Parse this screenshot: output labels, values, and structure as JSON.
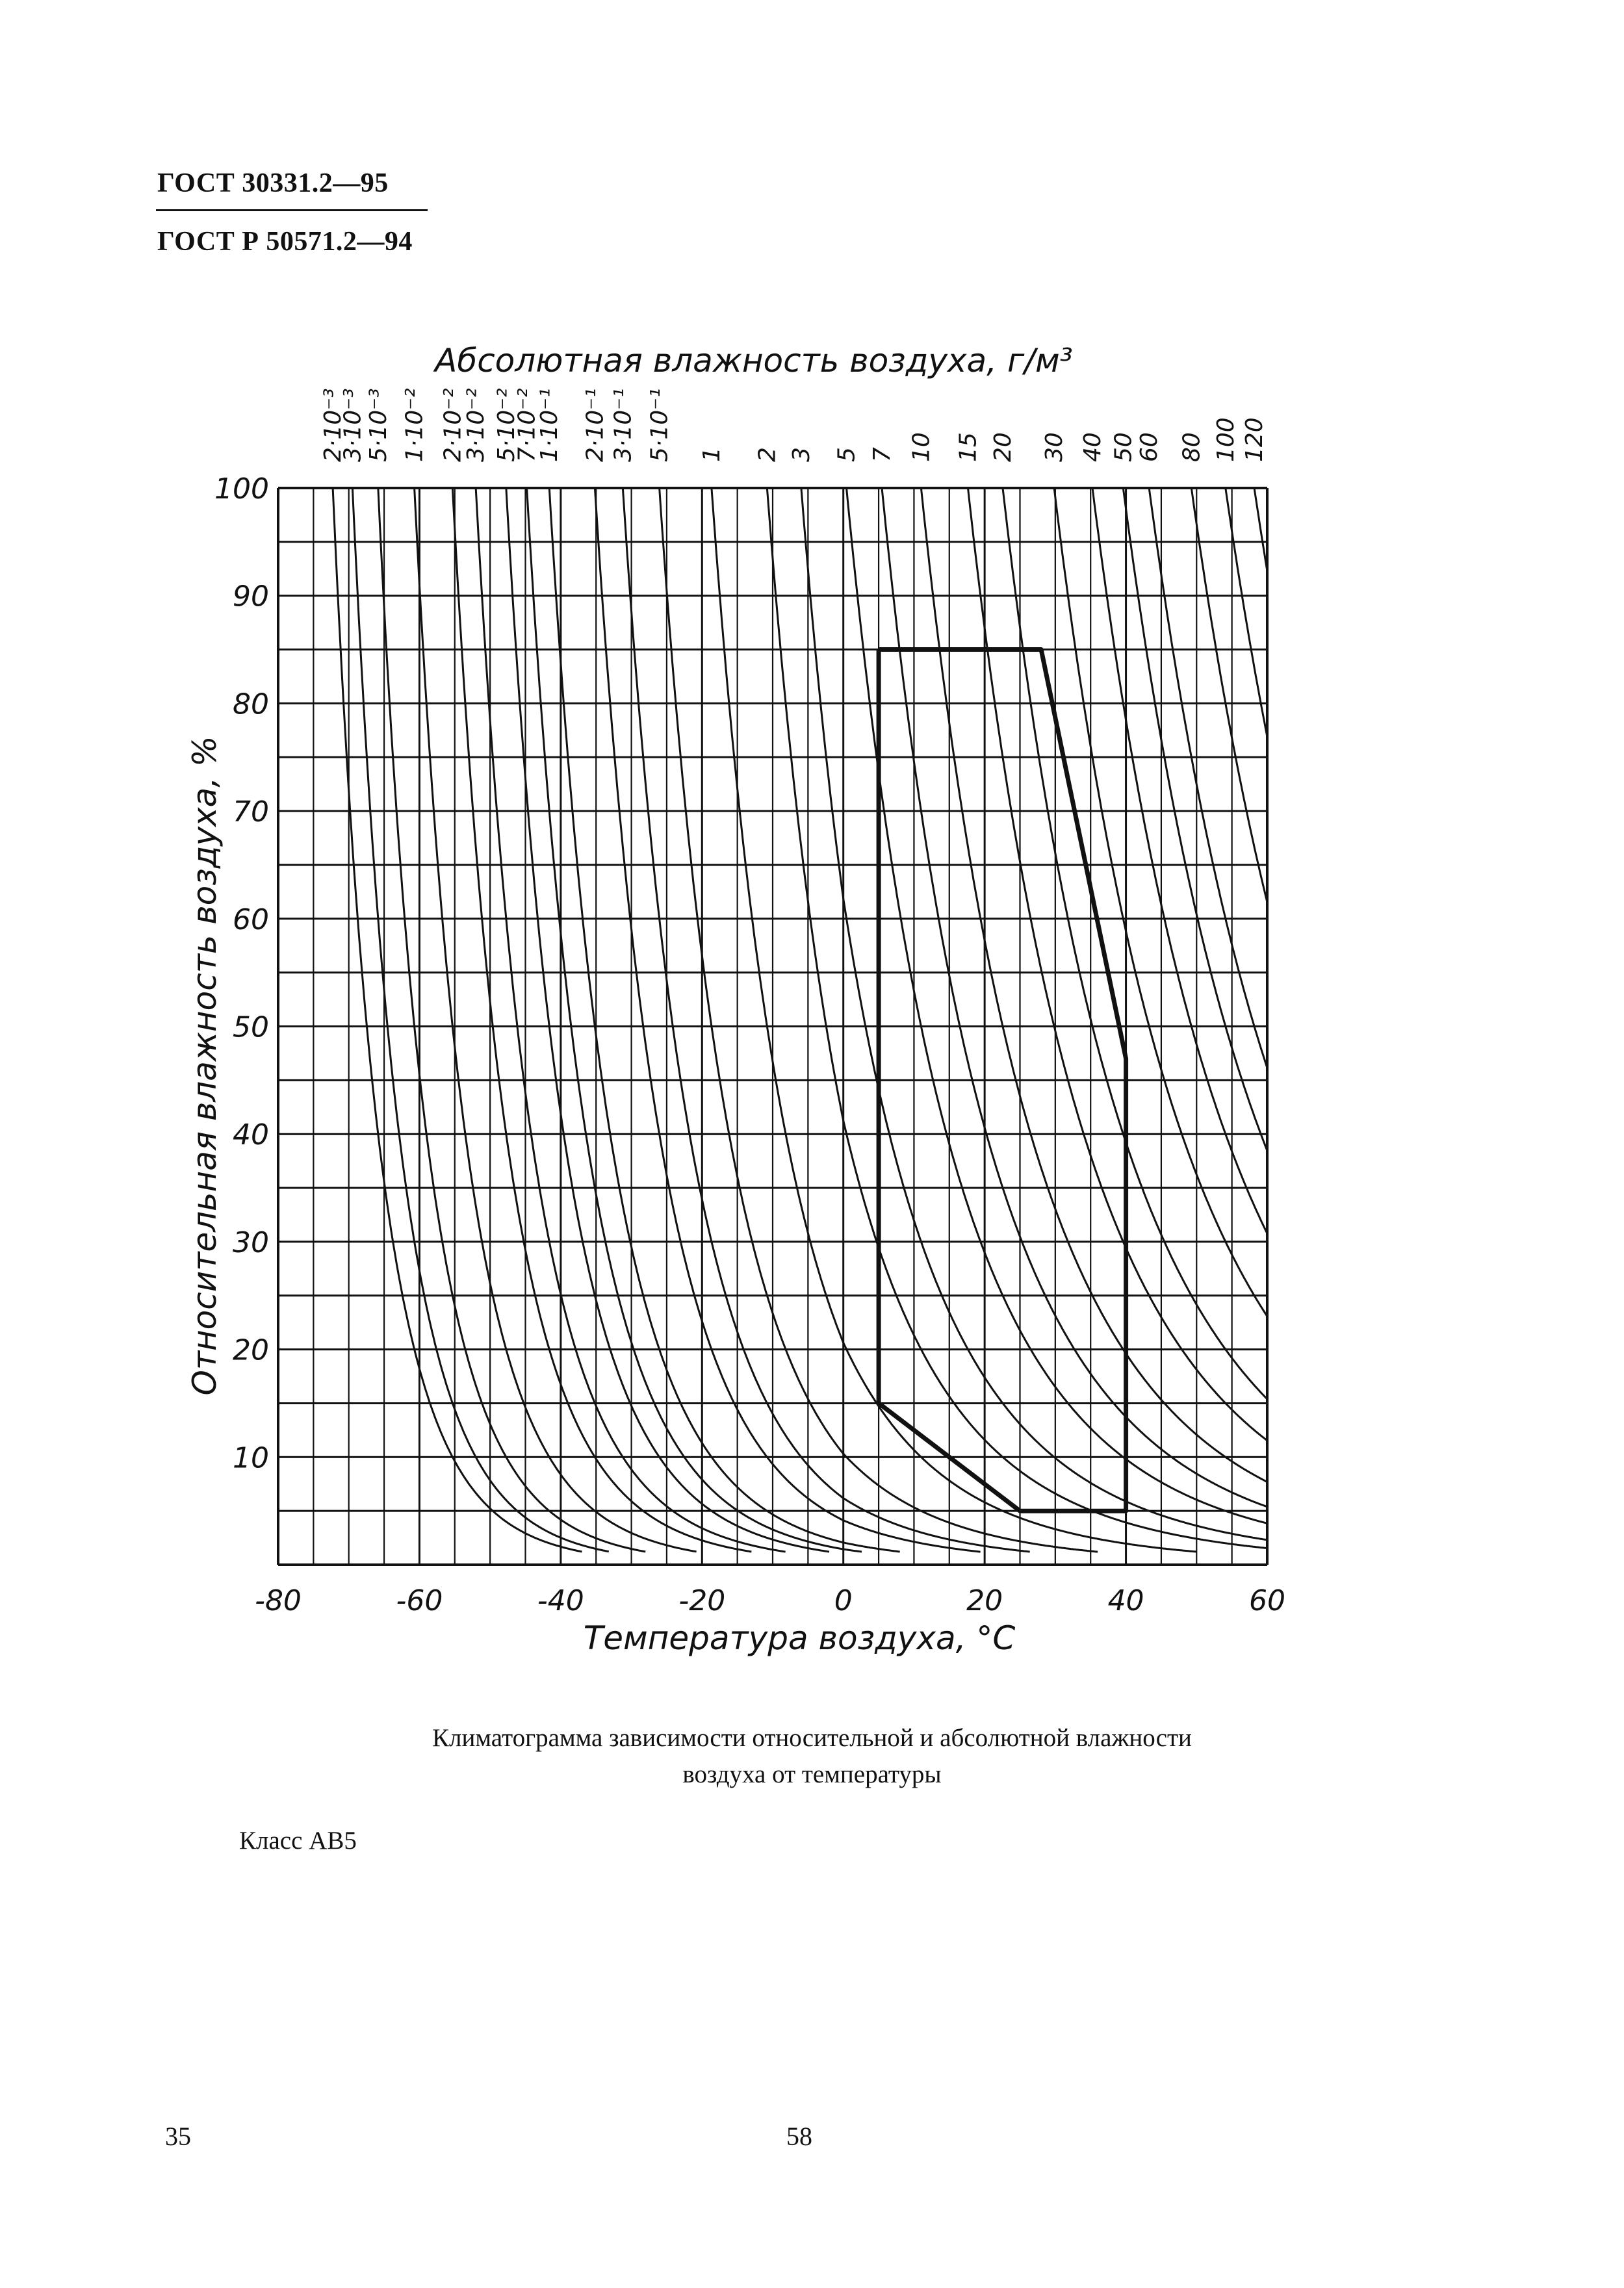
{
  "header": {
    "line1": "ГОСТ 30331.2—95",
    "line2": "ГОСТ Р 50571.2—94"
  },
  "caption": {
    "line1": "Климатограмма зависимости относительной и абсолютной влажности",
    "line2": "воздуха от температуры"
  },
  "class_label": "Класс АВ5",
  "page_numbers": {
    "left": "35",
    "center": "58"
  },
  "chart_data": {
    "type": "line",
    "title": "Абсолютная влажность воздуха, г/м³",
    "xlabel": "Температура воздуха, °С",
    "ylabel": "Относительная влажность воздуха, %",
    "xlim": [
      -80,
      60
    ],
    "ylim": [
      0,
      100
    ],
    "x_ticks": [
      "-80",
      "-60",
      "-40",
      "-20",
      "0",
      "20",
      "40",
      "60"
    ],
    "y_ticks": [
      "10",
      "20",
      "30",
      "40",
      "50",
      "60",
      "70",
      "80",
      "90",
      "100"
    ],
    "grid": true,
    "x_grid_step": 5,
    "y_grid_step": 5,
    "absolute_humidity_curves": [
      {
        "label": "2·10⁻³",
        "value": 0.002
      },
      {
        "label": "3·10⁻³",
        "value": 0.003
      },
      {
        "label": "5·10⁻³",
        "value": 0.005
      },
      {
        "label": "1·10⁻²",
        "value": 0.01
      },
      {
        "label": "2·10⁻²",
        "value": 0.02
      },
      {
        "label": "3·10⁻²",
        "value": 0.03
      },
      {
        "label": "5·10⁻²",
        "value": 0.05
      },
      {
        "label": "7·10⁻²",
        "value": 0.07
      },
      {
        "label": "1·10⁻¹",
        "value": 0.1
      },
      {
        "label": "2·10⁻¹",
        "value": 0.2
      },
      {
        "label": "3·10⁻¹",
        "value": 0.3
      },
      {
        "label": "5·10⁻¹",
        "value": 0.5
      },
      {
        "label": "1",
        "value": 1
      },
      {
        "label": "2",
        "value": 2
      },
      {
        "label": "3",
        "value": 3
      },
      {
        "label": "5",
        "value": 5
      },
      {
        "label": "7",
        "value": 7
      },
      {
        "label": "10",
        "value": 10
      },
      {
        "label": "15",
        "value": 15
      },
      {
        "label": "20",
        "value": 20
      },
      {
        "label": "30",
        "value": 30
      },
      {
        "label": "40",
        "value": 40
      },
      {
        "label": "50",
        "value": 50
      },
      {
        "label": "60",
        "value": 60
      },
      {
        "label": "80",
        "value": 80
      },
      {
        "label": "100",
        "value": 100
      },
      {
        "label": "120",
        "value": 120
      }
    ],
    "class_region": {
      "name": "Класс АВ5",
      "points": [
        {
          "t": 5,
          "rh": 85
        },
        {
          "t": 28,
          "rh": 85
        },
        {
          "t": 40,
          "rh": 47
        },
        {
          "t": 40,
          "rh": 5
        },
        {
          "t": 25,
          "rh": 5
        },
        {
          "t": 5,
          "rh": 15
        },
        {
          "t": 5,
          "rh": 85
        }
      ]
    }
  }
}
